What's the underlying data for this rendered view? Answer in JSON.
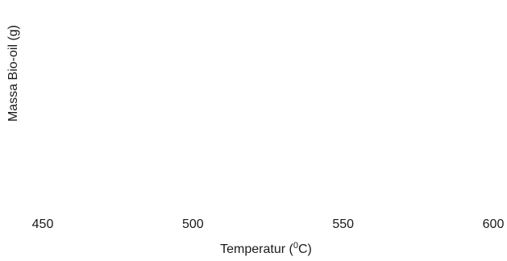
{
  "chart_data": {
    "type": "line",
    "xlabel": "Temperatur (",
    "xlabel_sup": "0",
    "xlabel_tail": "C)",
    "ylabel": "Massa Bio-oil (g)",
    "x_ticks": [
      450,
      500,
      550,
      600
    ],
    "xlim": [
      450,
      600
    ],
    "grid": false,
    "series": []
  }
}
